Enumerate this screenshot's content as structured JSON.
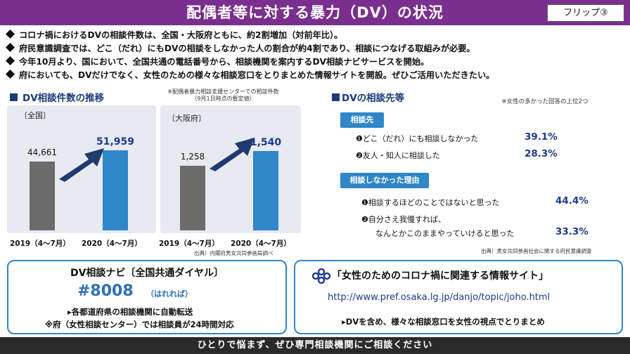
{
  "header": {
    "title": "配偶者等に対する暴力（DV）の状況",
    "flip": "フリップ③"
  },
  "bullets": [
    "コロナ禍におけるDVの相談件数は、全国・大阪府ともに、約2割増加（対前年比）。",
    "府民意識調査では、どこ（だれ）にもDVの相談をしなかった人の割合が約4割であり、相談につなげる取組みが必要。",
    "今年10月より、国において、全国共通の電話番号から、相談機関を案内するDV相談ナビサービスを開始。",
    "府においても、DVだけでなく、女性のための様々な相談窓口をとりまとめた情報サイトを開設。ぜひご活用いただきたい。"
  ],
  "colors": {
    "header": "#7a2f8e",
    "bar_prev": "#6b6b6b",
    "bar_curr": "#2f86c8",
    "arrow": "#1f3a6e",
    "accent": "#2f86c8"
  },
  "left_section": {
    "title": "DV相談件数の推移",
    "note_line1": "※配偶者暴力相談支援センターでの相談件数",
    "note_line2": "（9月1日時点の暫定値）",
    "source": "出典）内閣府男女共同参画局調べ"
  },
  "chart_data": [
    {
      "type": "bar",
      "title": "〔全国〕",
      "categories": [
        "2019（4〜7月）",
        "2020（4〜7月）"
      ],
      "values": [
        44661,
        51959
      ],
      "value_labels": [
        "44,661",
        "51,959"
      ],
      "ylim": [
        0,
        60000
      ]
    },
    {
      "type": "bar",
      "title": "〔大阪府〕",
      "categories": [
        "2019（4〜7月）",
        "2020（4〜7月）"
      ],
      "values": [
        1258,
        1540
      ],
      "value_labels": [
        "1,258",
        "1,540"
      ],
      "ylim": [
        0,
        1800
      ]
    }
  ],
  "right_section": {
    "title": "DVの相談先等",
    "note": "※女性の多かった回答の上位2つ",
    "tag1": "相談先",
    "items1": [
      {
        "label": "❶どこ（だれ）にも相談しなかった",
        "pct": "39.1%"
      },
      {
        "label": "❷友人・知人に相談した",
        "pct": "28.3%"
      }
    ],
    "tag2": "相談しなかった理由",
    "items2": [
      {
        "label": "❶相談するほどのことではないと思った",
        "pct": "44.4%"
      },
      {
        "label1": "❷自分さえ我慢すれば、",
        "label2": "なんとかこのままやっていけると思った",
        "pct": "33.3%"
      }
    ],
    "source": "出典）男女共同参画社会に関する府民意識調査"
  },
  "navi": {
    "title": "DV相談ナビ〔全国共通ダイヤル〕",
    "number": "#8008",
    "reading": "（はれれば）",
    "line1": "▸各都道府県の相談機関に自動転送",
    "line2": "※府（女性相談センター）では相談員が24時間対応"
  },
  "site": {
    "title": "「女性のためのコロナ禍に関連する情報サイト」",
    "url": "http://www.pref.osaka.lg.jp/danjo/topic/joho.html",
    "line": "▸DVを含め、様々な相談窓口を女性の視点でとりまとめ"
  },
  "footer": {
    "text": "ひとりで悩まず、ぜひ専門相談機関にご相談ください"
  }
}
